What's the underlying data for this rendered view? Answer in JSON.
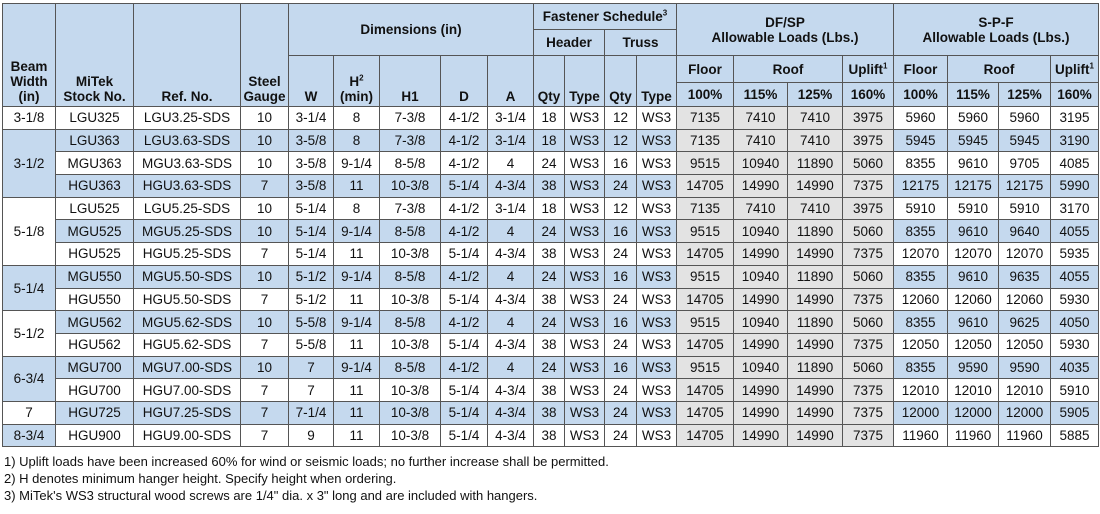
{
  "header": {
    "beam_width": [
      "Beam",
      "Width",
      "(in)"
    ],
    "mitek_stock": [
      "MiTek",
      "Stock No."
    ],
    "ref_no": "Ref. No.",
    "steel_gauge": [
      "Steel",
      "Gauge"
    ],
    "dimensions": "Dimensions (in)",
    "dim_cols": {
      "w": "W",
      "h": "H",
      "h_sup": "2",
      "h_sub": "(min)",
      "h1": "H1",
      "d": "D",
      "a": "A"
    },
    "fastener": "Fastener Schedule",
    "fastener_sup": "3",
    "header_label": "Header",
    "truss_label": "Truss",
    "qty": "Qty",
    "type": "Type",
    "dfsp": [
      "DF/SP",
      "Allowable Loads (Lbs.)"
    ],
    "spf": [
      "S-P-F",
      "Allowable Loads (Lbs.)"
    ],
    "floor": "Floor",
    "roof": "Roof",
    "uplift": "Uplift",
    "uplift_sup": "1",
    "pct": [
      "100%",
      "115%",
      "125%",
      "160%"
    ]
  },
  "groups": [
    {
      "width": "3-1/8",
      "rows": [
        {
          "stock": "LGU325",
          "ref": "LGU3.25-SDS",
          "gauge": "10",
          "w": "3-1/4",
          "h": "8",
          "h1": "7-3/8",
          "d": "4-1/2",
          "a": "3-1/4",
          "hq": "18",
          "ht": "WS3",
          "tq": "12",
          "tt": "WS3",
          "df": [
            "7135",
            "7410",
            "7410",
            "3975"
          ],
          "spf": [
            "5960",
            "5960",
            "5960",
            "3195"
          ]
        }
      ]
    },
    {
      "width": "3-1/2",
      "rows": [
        {
          "stock": "LGU363",
          "ref": "LGU3.63-SDS",
          "gauge": "10",
          "w": "3-5/8",
          "h": "8",
          "h1": "7-3/8",
          "d": "4-1/2",
          "a": "3-1/4",
          "hq": "18",
          "ht": "WS3",
          "tq": "12",
          "tt": "WS3",
          "df": [
            "7135",
            "7410",
            "7410",
            "3975"
          ],
          "spf": [
            "5945",
            "5945",
            "5945",
            "3190"
          ]
        },
        {
          "stock": "MGU363",
          "ref": "MGU3.63-SDS",
          "gauge": "10",
          "w": "3-5/8",
          "h": "9-1/4",
          "h1": "8-5/8",
          "d": "4-1/2",
          "a": "4",
          "hq": "24",
          "ht": "WS3",
          "tq": "16",
          "tt": "WS3",
          "df": [
            "9515",
            "10940",
            "11890",
            "5060"
          ],
          "spf": [
            "8355",
            "9610",
            "9705",
            "4085"
          ]
        },
        {
          "stock": "HGU363",
          "ref": "HGU3.63-SDS",
          "gauge": "7",
          "w": "3-5/8",
          "h": "11",
          "h1": "10-3/8",
          "d": "5-1/4",
          "a": "4-3/4",
          "hq": "38",
          "ht": "WS3",
          "tq": "24",
          "tt": "WS3",
          "df": [
            "14705",
            "14990",
            "14990",
            "7375"
          ],
          "spf": [
            "12175",
            "12175",
            "12175",
            "5990"
          ]
        }
      ]
    },
    {
      "width": "5-1/8",
      "rows": [
        {
          "stock": "LGU525",
          "ref": "LGU5.25-SDS",
          "gauge": "10",
          "w": "5-1/4",
          "h": "8",
          "h1": "7-3/8",
          "d": "4-1/2",
          "a": "3-1/4",
          "hq": "18",
          "ht": "WS3",
          "tq": "12",
          "tt": "WS3",
          "df": [
            "7135",
            "7410",
            "7410",
            "3975"
          ],
          "spf": [
            "5910",
            "5910",
            "5910",
            "3170"
          ]
        },
        {
          "stock": "MGU525",
          "ref": "MGU5.25-SDS",
          "gauge": "10",
          "w": "5-1/4",
          "h": "9-1/4",
          "h1": "8-5/8",
          "d": "4-1/2",
          "a": "4",
          "hq": "24",
          "ht": "WS3",
          "tq": "16",
          "tt": "WS3",
          "df": [
            "9515",
            "10940",
            "11890",
            "5060"
          ],
          "spf": [
            "8355",
            "9610",
            "9640",
            "4055"
          ]
        },
        {
          "stock": "HGU525",
          "ref": "HGU5.25-SDS",
          "gauge": "7",
          "w": "5-1/4",
          "h": "11",
          "h1": "10-3/8",
          "d": "5-1/4",
          "a": "4-3/4",
          "hq": "38",
          "ht": "WS3",
          "tq": "24",
          "tt": "WS3",
          "df": [
            "14705",
            "14990",
            "14990",
            "7375"
          ],
          "spf": [
            "12070",
            "12070",
            "12070",
            "5935"
          ]
        }
      ]
    },
    {
      "width": "5-1/4",
      "rows": [
        {
          "stock": "MGU550",
          "ref": "MGU5.50-SDS",
          "gauge": "10",
          "w": "5-1/2",
          "h": "9-1/4",
          "h1": "8-5/8",
          "d": "4-1/2",
          "a": "4",
          "hq": "24",
          "ht": "WS3",
          "tq": "16",
          "tt": "WS3",
          "df": [
            "9515",
            "10940",
            "11890",
            "5060"
          ],
          "spf": [
            "8355",
            "9610",
            "9635",
            "4055"
          ]
        },
        {
          "stock": "HGU550",
          "ref": "HGU5.50-SDS",
          "gauge": "7",
          "w": "5-1/2",
          "h": "11",
          "h1": "10-3/8",
          "d": "5-1/4",
          "a": "4-3/4",
          "hq": "38",
          "ht": "WS3",
          "tq": "24",
          "tt": "WS3",
          "df": [
            "14705",
            "14990",
            "14990",
            "7375"
          ],
          "spf": [
            "12060",
            "12060",
            "12060",
            "5930"
          ]
        }
      ]
    },
    {
      "width": "5-1/2",
      "rows": [
        {
          "stock": "MGU562",
          "ref": "MGU5.62-SDS",
          "gauge": "10",
          "w": "5-5/8",
          "h": "9-1/4",
          "h1": "8-5/8",
          "d": "4-1/2",
          "a": "4",
          "hq": "24",
          "ht": "WS3",
          "tq": "16",
          "tt": "WS3",
          "df": [
            "9515",
            "10940",
            "11890",
            "5060"
          ],
          "spf": [
            "8355",
            "9610",
            "9625",
            "4050"
          ]
        },
        {
          "stock": "HGU562",
          "ref": "HGU5.62-SDS",
          "gauge": "7",
          "w": "5-5/8",
          "h": "11",
          "h1": "10-3/8",
          "d": "5-1/4",
          "a": "4-3/4",
          "hq": "38",
          "ht": "WS3",
          "tq": "24",
          "tt": "WS3",
          "df": [
            "14705",
            "14990",
            "14990",
            "7375"
          ],
          "spf": [
            "12050",
            "12050",
            "12050",
            "5930"
          ]
        }
      ]
    },
    {
      "width": "6-3/4",
      "rows": [
        {
          "stock": "MGU700",
          "ref": "MGU7.00-SDS",
          "gauge": "10",
          "w": "7",
          "h": "9-1/4",
          "h1": "8-5/8",
          "d": "4-1/2",
          "a": "4",
          "hq": "24",
          "ht": "WS3",
          "tq": "16",
          "tt": "WS3",
          "df": [
            "9515",
            "10940",
            "11890",
            "5060"
          ],
          "spf": [
            "8355",
            "9590",
            "9590",
            "4035"
          ]
        },
        {
          "stock": "HGU700",
          "ref": "HGU7.00-SDS",
          "gauge": "7",
          "w": "7",
          "h": "11",
          "h1": "10-3/8",
          "d": "5-1/4",
          "a": "4-3/4",
          "hq": "38",
          "ht": "WS3",
          "tq": "24",
          "tt": "WS3",
          "df": [
            "14705",
            "14990",
            "14990",
            "7375"
          ],
          "spf": [
            "12010",
            "12010",
            "12010",
            "5910"
          ]
        }
      ]
    },
    {
      "width": "7",
      "rows": [
        {
          "stock": "HGU725",
          "ref": "HGU7.25-SDS",
          "gauge": "7",
          "w": "7-1/4",
          "h": "11",
          "h1": "10-3/8",
          "d": "5-1/4",
          "a": "4-3/4",
          "hq": "38",
          "ht": "WS3",
          "tq": "24",
          "tt": "WS3",
          "df": [
            "14705",
            "14990",
            "14990",
            "7375"
          ],
          "spf": [
            "12000",
            "12000",
            "12000",
            "5905"
          ]
        }
      ]
    },
    {
      "width": "8-3/4",
      "rows": [
        {
          "stock": "HGU900",
          "ref": "HGU9.00-SDS",
          "gauge": "7",
          "w": "9",
          "h": "11",
          "h1": "10-3/8",
          "d": "5-1/4",
          "a": "4-3/4",
          "hq": "38",
          "ht": "WS3",
          "tq": "24",
          "tt": "WS3",
          "df": [
            "14705",
            "14990",
            "14990",
            "7375"
          ],
          "spf": [
            "11960",
            "11960",
            "11960",
            "5885"
          ]
        }
      ]
    }
  ],
  "notes": [
    "1) Uplift loads have been increased 60% for wind or seismic loads; no further increase shall be permitted.",
    "2) H denotes minimum hanger height. Specify height when ordering.",
    "3) MiTek's WS3 structural wood screws are 1/4\" dia. x 3\" long and are included with hangers."
  ]
}
